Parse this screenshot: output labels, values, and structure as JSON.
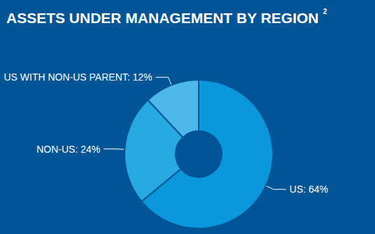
{
  "chart_data": {
    "type": "pie",
    "title": "ASSETS UNDER MANAGEMENT BY REGION",
    "title_footnote": "2",
    "categories": [
      "US",
      "NON-US",
      "US WITH NON-US PARENT"
    ],
    "values": [
      64,
      24,
      12
    ],
    "value_labels": [
      "US: 64%",
      "NON-US: 24%",
      "US WITH NON-US PARENT: 12%"
    ],
    "colors": [
      "#0a97db",
      "#27a9e1",
      "#4db8ea"
    ],
    "data_labels": true
  }
}
